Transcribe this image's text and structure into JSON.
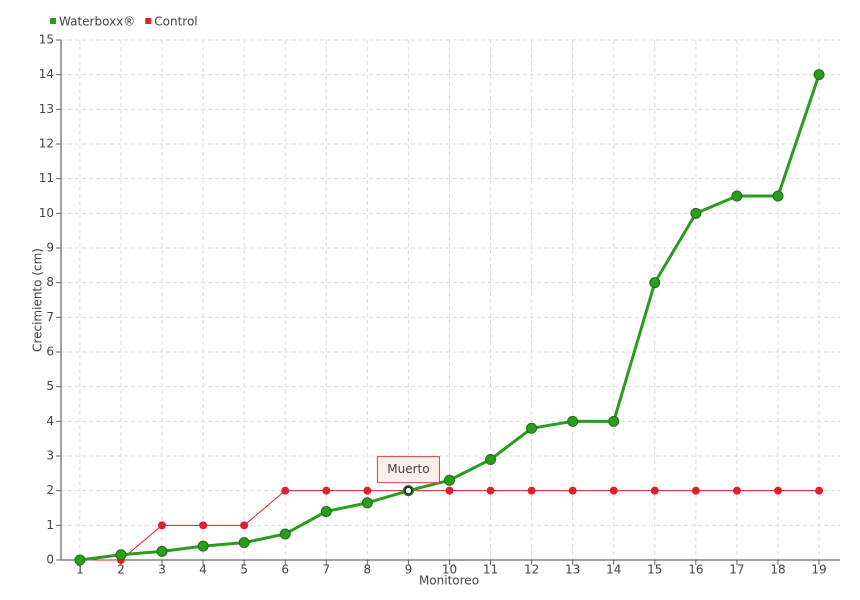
{
  "chart_data": {
    "type": "line",
    "x_label": "Monitoreo",
    "y_label": "Crecimiento (cm)",
    "x": [
      1,
      2,
      3,
      4,
      5,
      6,
      7,
      8,
      9,
      10,
      11,
      12,
      13,
      14,
      15,
      16,
      17,
      18,
      19
    ],
    "series": [
      {
        "name": "Waterboxx®",
        "color": "#2a9d1e",
        "values": [
          0,
          0.15,
          0.25,
          0.4,
          0.5,
          0.75,
          1.4,
          1.65,
          2,
          2.3,
          2.9,
          3.8,
          4,
          4,
          8,
          10,
          10.5,
          10.5,
          14
        ]
      },
      {
        "name": "Control",
        "color": "#e0202c",
        "values": [
          0,
          0,
          1,
          1,
          1,
          2,
          2,
          2,
          2,
          2,
          2,
          2,
          2,
          2,
          2,
          2,
          2,
          2,
          2
        ]
      }
    ],
    "xlim": [
      0.54,
      19.51
    ],
    "xticks": [
      1,
      2,
      3,
      4,
      5,
      6,
      7,
      8,
      9,
      10,
      11,
      12,
      13,
      14,
      15,
      16,
      17,
      18,
      19
    ],
    "ylim": [
      0,
      15
    ],
    "yticks": [
      0,
      1,
      2,
      3,
      4,
      5,
      6,
      7,
      8,
      9,
      10,
      11,
      12,
      13,
      14,
      15
    ],
    "grid": true,
    "legend": "top-left",
    "annotations": [
      {
        "text": "Muerto",
        "x": 9,
        "y": 2
      }
    ]
  }
}
